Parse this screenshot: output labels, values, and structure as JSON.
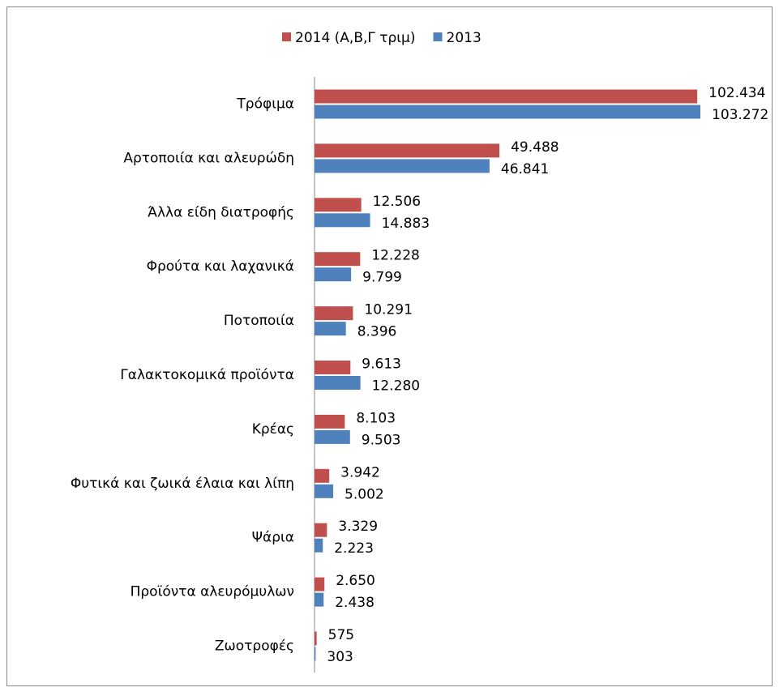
{
  "chart_data": {
    "type": "hbar",
    "categories": [
      "Τρόφιμα",
      "Αρτοποιία και αλευρώδη",
      "Άλλα είδη διατροφής",
      "Φρούτα και λαχανικά",
      "Ποτοποιία",
      "Γαλακτοκομικά προϊόντα",
      "Κρέας",
      "Φυτικά και ζωικά έλαια και λίπη",
      "Ψάρια",
      "Προϊόντα αλευρόμυλων",
      "Ζωοτροφές"
    ],
    "series": [
      {
        "name": "2014 (Α,Β,Γ τριμ)",
        "color": "#c0504d",
        "values": [
          102434,
          49488,
          12506,
          12228,
          10291,
          9613,
          8103,
          3942,
          3329,
          2650,
          575
        ],
        "value_labels": [
          "102.434",
          "49.488",
          "12.506",
          "12.228",
          "10.291",
          "9.613",
          "8.103",
          "3.942",
          "3.329",
          "2.650",
          "575"
        ]
      },
      {
        "name": "2013",
        "color": "#4f81bd",
        "values": [
          103272,
          46841,
          14883,
          9799,
          8396,
          12280,
          9503,
          5002,
          2223,
          2438,
          303
        ],
        "value_labels": [
          "103.272",
          "46.841",
          "14.883",
          "9.799",
          "8.396",
          "12.280",
          "9.503",
          "5.002",
          "2.223",
          "2.438",
          "303"
        ]
      }
    ],
    "legend": "top"
  }
}
